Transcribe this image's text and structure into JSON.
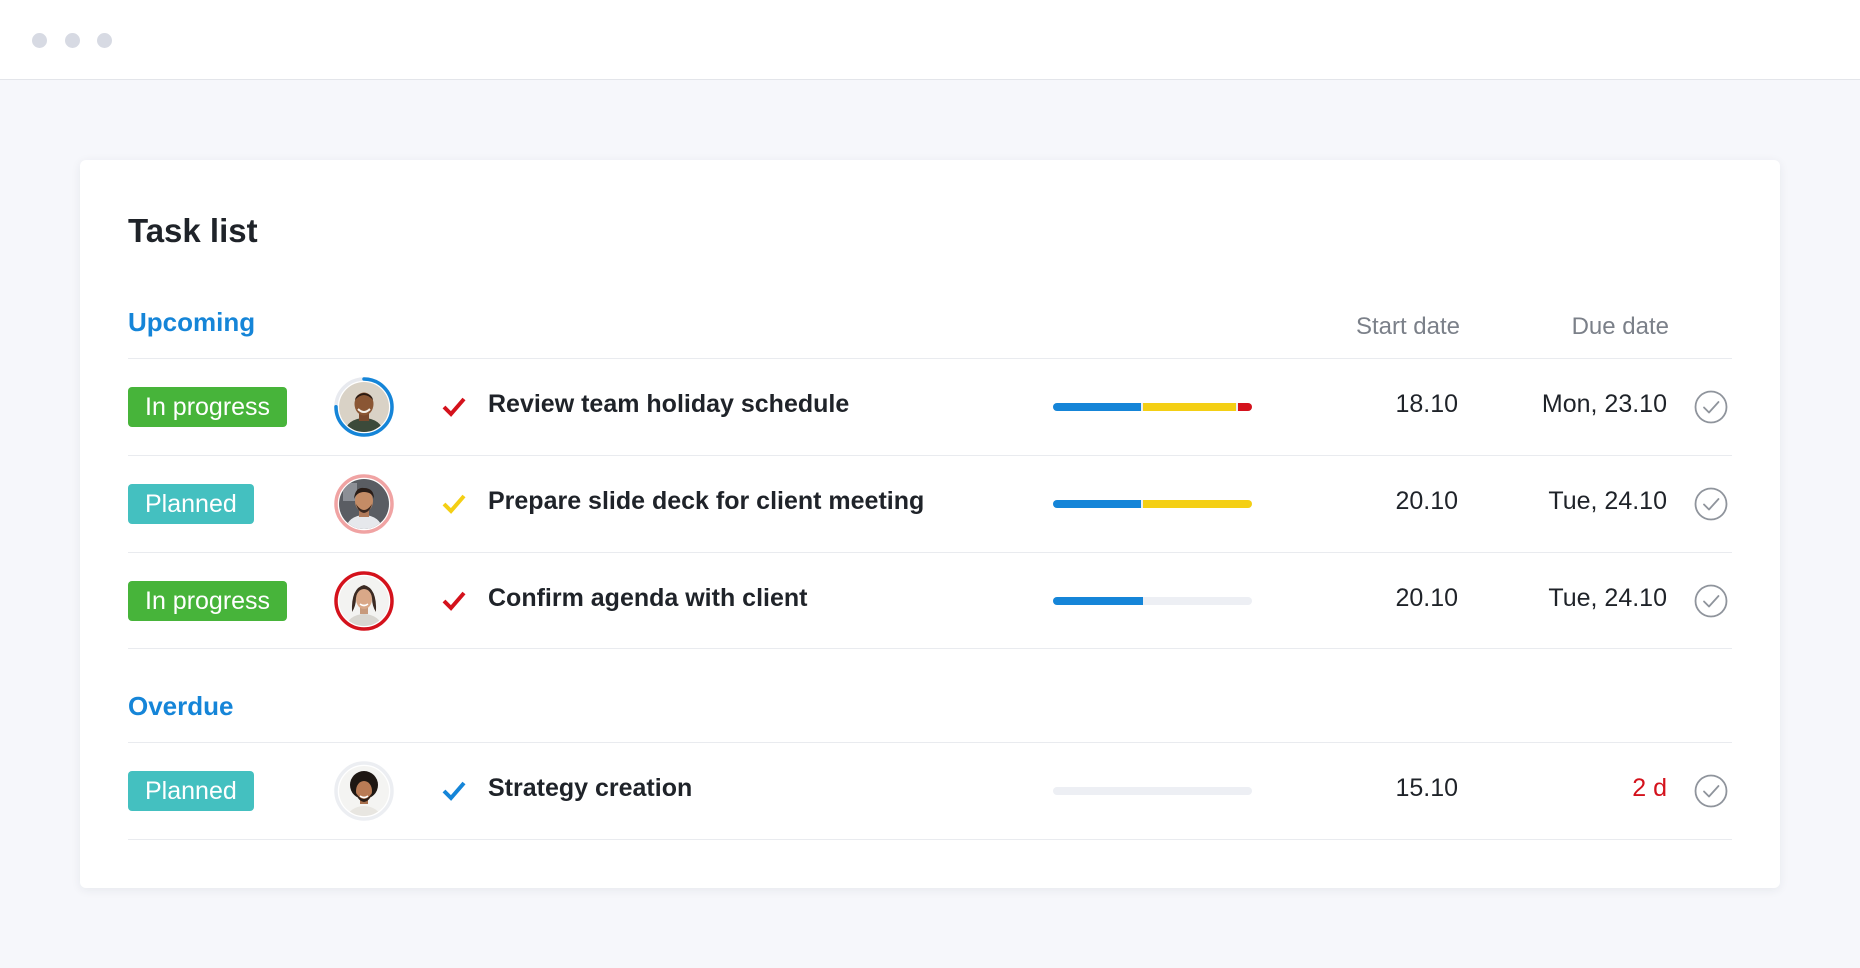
{
  "window": {
    "dots": [
      "dot",
      "dot",
      "dot"
    ]
  },
  "card": {
    "title": "Task list"
  },
  "columns": {
    "start_date": "Start date",
    "due_date": "Due date"
  },
  "sections": [
    {
      "title": "Upcoming",
      "tasks": [
        {
          "status": "In progress",
          "status_color": "#47b43a",
          "assignee_ring": "progress-ring",
          "ring_color": "#1585d8",
          "ring_progress": 0.75,
          "priority": "high",
          "priority_color": "#d4121c",
          "name": "Review team holiday schedule",
          "progress_segments": [
            {
              "color": "#1585d8",
              "fraction": 0.45
            },
            {
              "color": "#f4cf14",
              "fraction": 0.48
            },
            {
              "color": "#d4121c",
              "fraction": 0.07
            }
          ],
          "start_date": "18.10",
          "due_date": "Mon, 23.10"
        },
        {
          "status": "Planned",
          "status_color": "#44c0c0",
          "assignee_ring": "full-ring",
          "ring_color": "#f0a3a3",
          "ring_progress": 1.0,
          "priority": "medium",
          "priority_color": "#f4cf14",
          "name": "Prepare slide deck for client meeting",
          "progress_segments": [
            {
              "color": "#1585d8",
              "fraction": 0.45
            },
            {
              "color": "#f4cf14",
              "fraction": 0.55
            }
          ],
          "start_date": "20.10",
          "due_date": "Tue, 24.10"
        },
        {
          "status": "In progress",
          "status_color": "#47b43a",
          "assignee_ring": "full-ring",
          "ring_color": "#d4121c",
          "ring_progress": 1.0,
          "priority": "high",
          "priority_color": "#d4121c",
          "name": "Confirm agenda with client",
          "progress_segments": [
            {
              "color": "#1585d8",
              "fraction": 0.45
            }
          ],
          "start_date": "20.10",
          "due_date": "Tue, 24.10"
        }
      ]
    },
    {
      "title": "Overdue",
      "tasks": [
        {
          "status": "Planned",
          "status_color": "#44c0c0",
          "assignee_ring": "none",
          "ring_color": "#e9ebef",
          "ring_progress": 0,
          "priority": "low",
          "priority_color": "#1585d8",
          "name": "Strategy creation",
          "progress_segments": [],
          "start_date": "15.10",
          "due_date": "2 d",
          "due_overdue": true
        }
      ]
    }
  ]
}
